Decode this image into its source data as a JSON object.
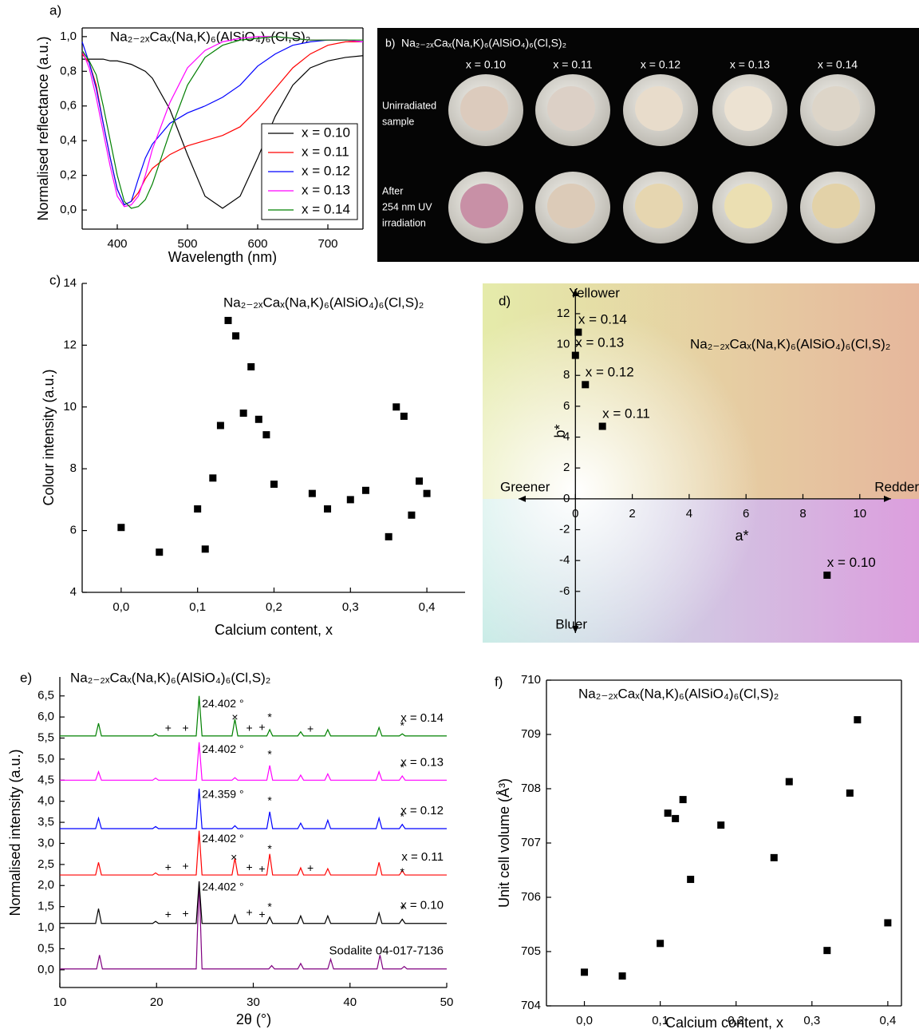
{
  "photo": {
    "label": "b)",
    "title": "Na₂₋₂ₓCaₓ(Na,K)₆(AlSiO₄)₆(Cl,S)₂",
    "columns": [
      "x = 0.10",
      "x = 0.11",
      "x = 0.12",
      "x = 0.13",
      "x = 0.14"
    ],
    "row_labels": [
      [
        "Unirradiated",
        "sample"
      ],
      [
        "After",
        "254 nm UV",
        "irradiation"
      ]
    ]
  },
  "chart_data": [
    {
      "type": "line",
      "label": "a)",
      "title": "Na₂₋₂ₓCaₓ(Na,K)₆(AlSiO₄)₆(Cl,S)₂",
      "xlabel": "Wavelength (nm)",
      "ylabel": "Normalised reflectance (a.u.)",
      "xlim": [
        350,
        750
      ],
      "ylim": [
        -0.11,
        1.05
      ],
      "xticks": [
        400,
        500,
        600,
        700
      ],
      "yticks": [
        {
          "value": 0,
          "label": "0,0"
        },
        {
          "value": 0.2,
          "label": "0,2"
        },
        {
          "value": 0.4,
          "label": "0,4"
        },
        {
          "value": 0.6,
          "label": "0,6"
        },
        {
          "value": 0.8,
          "label": "0,8"
        },
        {
          "value": 1,
          "label": "1,0"
        }
      ],
      "legend": "lower right",
      "frame": "box",
      "x": [
        350,
        360,
        370,
        380,
        390,
        400,
        410,
        420,
        430,
        440,
        450,
        475,
        500,
        525,
        550,
        575,
        600,
        625,
        650,
        675,
        700,
        725,
        750
      ],
      "series": [
        {
          "name": "x = 0.10",
          "color": "#000000",
          "values": [
            0.87,
            0.87,
            0.87,
            0.87,
            0.86,
            0.86,
            0.85,
            0.84,
            0.82,
            0.8,
            0.76,
            0.58,
            0.32,
            0.08,
            0.01,
            0.08,
            0.3,
            0.54,
            0.72,
            0.82,
            0.86,
            0.88,
            0.89
          ]
        },
        {
          "name": "x = 0.11",
          "color": "#ff0000",
          "values": [
            0.9,
            0.85,
            0.72,
            0.5,
            0.3,
            0.12,
            0.03,
            0.05,
            0.1,
            0.18,
            0.24,
            0.32,
            0.37,
            0.4,
            0.43,
            0.48,
            0.58,
            0.7,
            0.82,
            0.9,
            0.95,
            0.97,
            0.97
          ]
        },
        {
          "name": "x = 0.12",
          "color": "#0000ff",
          "values": [
            0.97,
            0.85,
            0.7,
            0.5,
            0.3,
            0.12,
            0.03,
            0.05,
            0.18,
            0.3,
            0.38,
            0.5,
            0.56,
            0.6,
            0.65,
            0.72,
            0.83,
            0.9,
            0.95,
            0.97,
            0.98,
            0.98,
            0.97
          ]
        },
        {
          "name": "x = 0.13",
          "color": "#ff00ff",
          "values": [
            0.92,
            0.82,
            0.65,
            0.45,
            0.25,
            0.08,
            0.02,
            0.03,
            0.08,
            0.2,
            0.35,
            0.62,
            0.82,
            0.92,
            0.97,
            0.99,
            1.0,
            1.0,
            0.99,
            0.98,
            0.98,
            0.98,
            0.97
          ]
        },
        {
          "name": "x = 0.14",
          "color": "#008000",
          "values": [
            0.92,
            0.86,
            0.78,
            0.6,
            0.4,
            0.2,
            0.05,
            0.01,
            0.02,
            0.06,
            0.15,
            0.45,
            0.72,
            0.88,
            0.95,
            0.98,
            0.99,
            1.0,
            0.99,
            0.98,
            0.98,
            0.98,
            0.98
          ]
        }
      ]
    },
    {
      "type": "scatter",
      "label": "c)",
      "title": "Na₂₋₂ₓCaₓ(Na,K)₆(AlSiO₄)₆(Cl,S)₂",
      "xlabel": "Calcium content, x",
      "ylabel": "Colour intensity (a.u.)",
      "color": "#000000",
      "frame": "open",
      "xlim": [
        -0.051,
        0.45
      ],
      "ylim": [
        4,
        14
      ],
      "xticks": [
        {
          "value": 0,
          "label": "0,0"
        },
        {
          "value": 0.1,
          "label": "0,1"
        },
        {
          "value": 0.2,
          "label": "0,2"
        },
        {
          "value": 0.3,
          "label": "0,3"
        },
        {
          "value": 0.4,
          "label": "0,4"
        }
      ],
      "yticks": [
        4,
        6,
        8,
        10,
        12,
        14
      ],
      "x": [
        0,
        0.05,
        0.1,
        0.11,
        0.12,
        0.13,
        0.14,
        0.15,
        0.16,
        0.17,
        0.18,
        0.19,
        0.2,
        0.25,
        0.27,
        0.3,
        0.32,
        0.35,
        0.36,
        0.37,
        0.38,
        0.39,
        0.4
      ],
      "values": [
        6.1,
        5.3,
        6.7,
        5.4,
        7.7,
        9.4,
        12.8,
        12.3,
        9.8,
        11.3,
        9.6,
        9.1,
        7.5,
        7.2,
        6.7,
        7.0,
        7.3,
        5.8,
        10.0,
        9.7,
        6.5,
        7.6,
        7.2
      ]
    },
    {
      "type": "scatter",
      "label": "d)",
      "title": "Na₂₋₂ₓCaₓ(Na,K)₆(AlSiO₄)₆(Cl,S)₂",
      "xlabel": "a*",
      "ylabel": "b*",
      "axes": "cross",
      "color": "#000000",
      "direction_labels": {
        "top": "Yellower",
        "bottom": "Bluer",
        "left": "Greener",
        "right": "Redder"
      },
      "xlim": [
        -2,
        11.1
      ],
      "ylim": [
        -8.7,
        13.6
      ],
      "xticks": [
        0,
        2,
        4,
        6,
        8,
        10
      ],
      "yticks": [
        -6,
        -4,
        -2,
        0,
        2,
        4,
        6,
        8,
        10,
        12
      ],
      "x": [
        8.85,
        0.95,
        0.35,
        0,
        0.1
      ],
      "values": [
        -4.95,
        4.7,
        7.4,
        9.3,
        10.8
      ],
      "labels": [
        "x = 0.10",
        "x = 0.11",
        "x = 0.12",
        "x = 0.13",
        "x = 0.14"
      ]
    },
    {
      "type": "line",
      "label": "e)",
      "title": "Na₂₋₂ₓCaₓ(Na,K)₆(AlSiO₄)₆(Cl,S)₂",
      "xlabel": "2θ (°)",
      "ylabel": "Normalised intensity (a.u.)",
      "frame": "open",
      "series_labels": "inline",
      "xlim": [
        10,
        50
      ],
      "ylim": [
        -0.42,
        6.95
      ],
      "xticks": [
        10,
        20,
        30,
        40,
        50
      ],
      "yticks": [
        {
          "value": 0,
          "label": "0,0"
        },
        {
          "value": 0.5,
          "label": "0,5"
        },
        {
          "value": 1,
          "label": "1,0"
        },
        {
          "value": 1.5,
          "label": "1,5"
        },
        {
          "value": 2,
          "label": "2,0"
        },
        {
          "value": 2.5,
          "label": "2,5"
        },
        {
          "value": 3,
          "label": "3,0"
        },
        {
          "value": 3.5,
          "label": "3,5"
        },
        {
          "value": 4,
          "label": "4,0"
        },
        {
          "value": 4.5,
          "label": "4,5"
        },
        {
          "value": 5,
          "label": "5,0"
        },
        {
          "value": 5.5,
          "label": "5,5"
        },
        {
          "value": 6,
          "label": "6,0"
        },
        {
          "value": 6.5,
          "label": "6,5"
        }
      ],
      "series": [
        {
          "name": "Sodalite 04-017-7136",
          "color": "#800080",
          "x": [
            10,
            13.8,
            14.1,
            14.4,
            24.1,
            24.4,
            24.7,
            31.6,
            31.9,
            32.2,
            34.6,
            34.9,
            35.2,
            37.7,
            38.0,
            38.3,
            42.8,
            43.1,
            43.4,
            45.3,
            45.6,
            45.9,
            50
          ],
          "values": [
            0.02,
            0.02,
            0.35,
            0.02,
            0.02,
            2.1,
            0.02,
            0.02,
            0.1,
            0.02,
            0.02,
            0.15,
            0.02,
            0.02,
            0.25,
            0.02,
            0.02,
            0.35,
            0.02,
            0.02,
            0.08,
            0.02,
            0.02
          ]
        },
        {
          "name": "x = 0.10",
          "color": "#000000",
          "x": [
            10,
            13.7,
            14,
            14.3,
            19.6,
            19.9,
            20.2,
            24.1,
            24.4,
            24.7,
            27.8,
            28.1,
            28.4,
            31.4,
            31.7,
            32,
            34.6,
            34.9,
            35.2,
            37.4,
            37.7,
            38,
            42.7,
            43,
            43.3,
            45.1,
            45.4,
            45.7,
            50
          ],
          "values": [
            1.1,
            1.1,
            1.45,
            1.1,
            1.1,
            1.15,
            1.1,
            1.1,
            2.1,
            1.1,
            1.1,
            1.3,
            1.1,
            1.1,
            1.25,
            1.1,
            1.1,
            1.28,
            1.1,
            1.1,
            1.28,
            1.1,
            1.1,
            1.35,
            1.1,
            1.1,
            1.2,
            1.1,
            1.1
          ]
        },
        {
          "name": "x = 0.11",
          "color": "#ff0000",
          "x": [
            10,
            13.7,
            14,
            14.3,
            19.6,
            19.9,
            20.2,
            24.1,
            24.4,
            24.7,
            27.8,
            28.1,
            28.4,
            31.4,
            31.7,
            32,
            34.6,
            34.9,
            35.2,
            37.4,
            37.7,
            38,
            42.7,
            43,
            43.3,
            45.1,
            45.4,
            45.7,
            50
          ],
          "values": [
            2.25,
            2.25,
            2.55,
            2.25,
            2.25,
            2.3,
            2.25,
            2.25,
            3.3,
            2.25,
            2.25,
            2.65,
            2.25,
            2.25,
            2.75,
            2.25,
            2.25,
            2.42,
            2.25,
            2.25,
            2.4,
            2.25,
            2.25,
            2.55,
            2.25,
            2.25,
            2.35,
            2.25,
            2.25
          ]
        },
        {
          "name": "x = 0.12",
          "color": "#0000ff",
          "x": [
            10,
            13.7,
            14,
            14.3,
            19.6,
            19.9,
            20.2,
            24.1,
            24.4,
            24.7,
            27.8,
            28.1,
            28.4,
            31.4,
            31.7,
            32,
            34.6,
            34.9,
            35.2,
            37.4,
            37.7,
            38,
            42.7,
            43,
            43.3,
            45.1,
            45.4,
            45.7,
            50
          ],
          "values": [
            3.35,
            3.35,
            3.6,
            3.35,
            3.35,
            3.4,
            3.35,
            3.35,
            4.3,
            3.35,
            3.35,
            3.42,
            3.35,
            3.35,
            3.75,
            3.35,
            3.35,
            3.48,
            3.35,
            3.35,
            3.55,
            3.35,
            3.35,
            3.6,
            3.35,
            3.35,
            3.45,
            3.35,
            3.35
          ]
        },
        {
          "name": "x = 0.13",
          "color": "#ff00ff",
          "x": [
            10,
            13.7,
            14,
            14.3,
            19.6,
            19.9,
            20.2,
            24.1,
            24.4,
            24.7,
            27.8,
            28.1,
            28.4,
            31.4,
            31.7,
            32,
            34.6,
            34.9,
            35.2,
            37.4,
            37.7,
            38,
            42.7,
            43,
            43.3,
            45.1,
            45.4,
            45.7,
            50
          ],
          "values": [
            4.5,
            4.5,
            4.7,
            4.5,
            4.5,
            4.55,
            4.5,
            4.5,
            5.4,
            4.5,
            4.5,
            4.56,
            4.5,
            4.5,
            4.85,
            4.5,
            4.5,
            4.62,
            4.5,
            4.5,
            4.65,
            4.5,
            4.5,
            4.7,
            4.5,
            4.5,
            4.6,
            4.5,
            4.5
          ]
        },
        {
          "name": "x = 0.14",
          "color": "#008000",
          "x": [
            10,
            13.7,
            14,
            14.3,
            19.6,
            19.9,
            20.2,
            24.1,
            24.4,
            24.7,
            27.8,
            28.1,
            28.4,
            31.4,
            31.7,
            32,
            34.6,
            34.9,
            35.2,
            37.4,
            37.7,
            38,
            42.7,
            43,
            43.3,
            45.1,
            45.4,
            45.7,
            50
          ],
          "values": [
            5.55,
            5.55,
            5.85,
            5.55,
            5.55,
            5.6,
            5.55,
            5.55,
            6.5,
            5.55,
            5.55,
            5.95,
            5.55,
            5.55,
            5.7,
            5.55,
            5.55,
            5.65,
            5.55,
            5.55,
            5.7,
            5.55,
            5.55,
            5.75,
            5.55,
            5.55,
            5.6,
            5.55,
            5.55
          ]
        }
      ],
      "annotations": [
        {
          "text": "24.402 °",
          "x": 24.7,
          "y": 6.3,
          "color": "#008000"
        },
        {
          "text": "24.402 °",
          "x": 24.7,
          "y": 5.22,
          "color": "#ff00ff"
        },
        {
          "text": "24.359 °",
          "x": 24.7,
          "y": 4.15,
          "color": "#0000ff"
        },
        {
          "text": "24.402 °",
          "x": 24.7,
          "y": 3.1,
          "color": "#ff0000"
        },
        {
          "text": "24.402 °",
          "x": 24.7,
          "y": 1.95,
          "color": "#000000"
        },
        {
          "text": "+",
          "x": 21.2,
          "y": 5.72,
          "color": "#000000"
        },
        {
          "text": "+",
          "x": 23,
          "y": 5.72,
          "color": "#000000"
        },
        {
          "text": "×",
          "x": 28.1,
          "y": 5.98,
          "color": "#000000"
        },
        {
          "text": "+",
          "x": 29.6,
          "y": 5.72,
          "color": "#000000"
        },
        {
          "text": "+",
          "x": 30.9,
          "y": 5.74,
          "color": "#000000"
        },
        {
          "text": "*",
          "x": 31.7,
          "y": 5.98,
          "color": "#000000"
        },
        {
          "text": "+",
          "x": 35.9,
          "y": 5.7,
          "color": "#000000"
        },
        {
          "text": "*",
          "x": 45.4,
          "y": 5.78,
          "color": "#000000"
        },
        {
          "text": "*",
          "x": 31.7,
          "y": 5.1,
          "color": "#000000"
        },
        {
          "text": "*",
          "x": 45.4,
          "y": 4.78,
          "color": "#000000"
        },
        {
          "text": "*",
          "x": 31.7,
          "y": 4.0,
          "color": "#000000"
        },
        {
          "text": "*",
          "x": 45.4,
          "y": 3.62,
          "color": "#000000"
        },
        {
          "text": "+",
          "x": 21.2,
          "y": 2.42,
          "color": "#000000"
        },
        {
          "text": "+",
          "x": 23,
          "y": 2.44,
          "color": "#000000"
        },
        {
          "text": "×",
          "x": 28,
          "y": 2.65,
          "color": "#000000"
        },
        {
          "text": "+",
          "x": 29.6,
          "y": 2.42,
          "color": "#000000"
        },
        {
          "text": "+",
          "x": 30.9,
          "y": 2.38,
          "color": "#000000"
        },
        {
          "text": "*",
          "x": 31.7,
          "y": 2.85,
          "color": "#000000"
        },
        {
          "text": "+",
          "x": 35.9,
          "y": 2.4,
          "color": "#000000"
        },
        {
          "text": "*",
          "x": 45.4,
          "y": 2.3,
          "color": "#000000"
        },
        {
          "text": "+",
          "x": 21.2,
          "y": 1.3,
          "color": "#000000"
        },
        {
          "text": "+",
          "x": 23,
          "y": 1.32,
          "color": "#000000"
        },
        {
          "text": "+",
          "x": 29.6,
          "y": 1.35,
          "color": "#000000"
        },
        {
          "text": "+",
          "x": 30.9,
          "y": 1.3,
          "color": "#000000"
        },
        {
          "text": "*",
          "x": 31.7,
          "y": 1.48,
          "color": "#000000"
        },
        {
          "text": "*",
          "x": 45.4,
          "y": 1.42,
          "color": "#000000"
        }
      ]
    },
    {
      "type": "scatter",
      "label": "f)",
      "title": "Na₂₋₂ₓCaₓ(Na,K)₆(AlSiO₄)₆(Cl,S)₂",
      "xlabel": "Calcium content, x",
      "ylabel": "Unit cell volume (Å³)",
      "color": "#000000",
      "frame": "box",
      "xlim": [
        -0.05,
        0.418
      ],
      "ylim": [
        704,
        710
      ],
      "xticks": [
        {
          "value": 0,
          "label": "0,0"
        },
        {
          "value": 0.1,
          "label": "0,1"
        },
        {
          "value": 0.2,
          "label": "0,2"
        },
        {
          "value": 0.3,
          "label": "0,3"
        },
        {
          "value": 0.4,
          "label": "0,4"
        }
      ],
      "yticks": [
        704,
        705,
        706,
        707,
        708,
        709,
        710
      ],
      "x": [
        0,
        0.05,
        0.1,
        0.11,
        0.12,
        0.13,
        0.14,
        0.18,
        0.25,
        0.27,
        0.32,
        0.35,
        0.36,
        0.4
      ],
      "values": [
        704.62,
        704.55,
        705.15,
        707.55,
        707.45,
        707.8,
        706.33,
        707.33,
        706.73,
        708.13,
        705.02,
        707.92,
        709.27,
        705.53
      ]
    }
  ]
}
